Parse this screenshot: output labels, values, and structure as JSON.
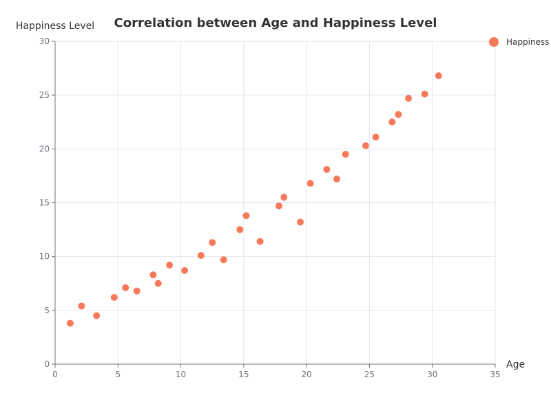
{
  "chart_data": {
    "type": "scatter",
    "title": "Correlation between Age and Happiness Level",
    "xlabel": "Age",
    "ylabel": "Happiness Level",
    "xlim": [
      0,
      35
    ],
    "ylim": [
      0,
      30
    ],
    "xticks": [
      0,
      5,
      10,
      15,
      20,
      25,
      30,
      35
    ],
    "yticks": [
      0,
      5,
      10,
      15,
      20,
      25,
      30
    ],
    "grid": true,
    "legend_position": "top-right",
    "series": [
      {
        "name": "Happiness",
        "color": "#f67a5a",
        "points": [
          [
            1.2,
            3.8
          ],
          [
            2.1,
            5.4
          ],
          [
            3.3,
            4.5
          ],
          [
            4.7,
            6.2
          ],
          [
            5.6,
            7.1
          ],
          [
            6.5,
            6.8
          ],
          [
            7.8,
            8.3
          ],
          [
            8.2,
            7.5
          ],
          [
            9.1,
            9.2
          ],
          [
            10.3,
            8.7
          ],
          [
            11.6,
            10.1
          ],
          [
            12.5,
            11.3
          ],
          [
            13.4,
            9.7
          ],
          [
            14.7,
            12.5
          ],
          [
            15.2,
            13.8
          ],
          [
            16.3,
            11.4
          ],
          [
            17.8,
            14.7
          ],
          [
            18.2,
            15.5
          ],
          [
            19.5,
            13.2
          ],
          [
            20.3,
            16.8
          ],
          [
            21.6,
            18.1
          ],
          [
            22.4,
            17.2
          ],
          [
            23.1,
            19.5
          ],
          [
            24.7,
            20.3
          ],
          [
            25.5,
            21.1
          ],
          [
            26.8,
            22.5
          ],
          [
            27.3,
            23.2
          ],
          [
            28.1,
            24.7
          ],
          [
            29.4,
            25.1
          ],
          [
            30.5,
            26.8
          ]
        ]
      }
    ]
  }
}
